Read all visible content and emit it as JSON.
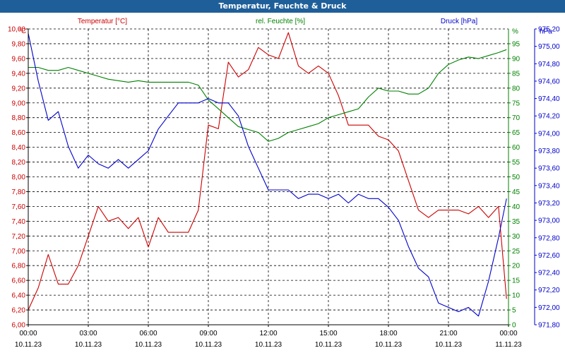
{
  "window": {
    "title": "Temperatur, Feuchte & Druck"
  },
  "colors": {
    "temperature": "#cc0000",
    "humidity": "#008000",
    "pressure": "#0000cc",
    "titlebar": "#1f5f99"
  },
  "chart_data": {
    "type": "line",
    "title": "Temperatur, Feuchte & Druck",
    "grid": true,
    "x_ticks": [
      {
        "time": "00:00",
        "date": "10.11.23"
      },
      {
        "time": "03:00",
        "date": "10.11.23"
      },
      {
        "time": "06:00",
        "date": "10.11.23"
      },
      {
        "time": "09:00",
        "date": "10.11.23"
      },
      {
        "time": "12:00",
        "date": "10.11.23"
      },
      {
        "time": "15:00",
        "date": "10.11.23"
      },
      {
        "time": "18:00",
        "date": "10.11.23"
      },
      {
        "time": "21:00",
        "date": "10.11.23"
      },
      {
        "time": "00:00",
        "date": "11.11.23"
      }
    ],
    "axes": {
      "temperature": {
        "unit": "°C",
        "ylim": [
          6.0,
          10.0
        ],
        "ticks": [
          "6,00",
          "6,20",
          "6,40",
          "6,60",
          "6,80",
          "7,00",
          "7,20",
          "7,40",
          "7,60",
          "7,80",
          "8,00",
          "8,20",
          "8,40",
          "8,60",
          "8,80",
          "9,00",
          "9,20",
          "9,40",
          "9,60",
          "9,80",
          "10,00"
        ]
      },
      "humidity": {
        "unit": "%",
        "ylim": [
          0,
          100
        ],
        "ticks": [
          "0",
          "5",
          "10",
          "15",
          "20",
          "25",
          "30",
          "35",
          "40",
          "45",
          "50",
          "55",
          "60",
          "65",
          "70",
          "75",
          "80",
          "85",
          "90",
          "95"
        ]
      },
      "pressure": {
        "unit": "hPa",
        "ylim": [
          971.8,
          975.2
        ],
        "ticks": [
          "971,80",
          "972,00",
          "972,20",
          "972,40",
          "972,60",
          "972,80",
          "973,00",
          "973,20",
          "973,40",
          "973,60",
          "973,80",
          "974,00",
          "974,20",
          "974,40",
          "974,60",
          "974,80",
          "975,00",
          "975,20"
        ]
      }
    },
    "series": [
      {
        "name": "Temperatur [°C]",
        "axis": "temperature",
        "x": [
          0,
          0.5,
          1,
          1.5,
          2,
          2.5,
          3,
          3.5,
          4,
          4.5,
          5,
          5.5,
          6,
          6.5,
          7,
          7.5,
          8,
          8.5,
          9,
          9.5,
          10,
          10.5,
          11,
          11.5,
          12,
          12.5,
          13,
          13.5,
          14,
          14.5,
          15,
          15.5,
          16,
          16.5,
          17,
          17.5,
          18,
          18.5,
          19,
          19.5,
          20,
          20.5,
          21,
          21.5,
          22,
          22.5,
          23,
          23.5,
          23.9
        ],
        "values": [
          6.2,
          6.5,
          6.95,
          6.55,
          6.55,
          6.8,
          7.2,
          7.6,
          7.4,
          7.45,
          7.3,
          7.45,
          7.05,
          7.45,
          7.25,
          7.25,
          7.25,
          7.55,
          8.7,
          8.65,
          9.55,
          9.35,
          9.45,
          9.75,
          9.65,
          9.6,
          9.95,
          9.5,
          9.4,
          9.5,
          9.4,
          9.1,
          8.7,
          8.7,
          8.7,
          8.55,
          8.5,
          8.35,
          7.95,
          7.55,
          7.45,
          7.55,
          7.55,
          7.55,
          7.5,
          7.6,
          7.45,
          7.6,
          6.35
        ]
      },
      {
        "name": "rel. Feuchte [%]",
        "axis": "humidity",
        "x": [
          0,
          0.5,
          1,
          1.5,
          2,
          2.5,
          3,
          3.5,
          4,
          4.5,
          5,
          5.5,
          6,
          6.5,
          7,
          7.5,
          8,
          8.5,
          9,
          9.5,
          10,
          10.5,
          11,
          11.5,
          12,
          12.5,
          13,
          13.5,
          14,
          14.5,
          15,
          15.5,
          16,
          16.5,
          17,
          17.5,
          18,
          18.5,
          19,
          19.5,
          20,
          20.5,
          21,
          21.5,
          22,
          22.5,
          23,
          23.5,
          23.9
        ],
        "values": [
          87,
          87,
          86,
          86,
          87,
          86,
          85,
          84,
          83,
          82.5,
          82,
          82.5,
          82,
          82,
          82,
          82,
          82,
          81,
          76,
          73,
          70,
          67,
          66,
          65,
          62,
          63,
          65,
          66,
          67,
          68,
          70,
          71,
          72,
          73,
          77,
          80,
          79,
          79,
          78,
          78,
          80,
          85,
          88,
          89.5,
          90.5,
          90,
          91,
          92,
          93
        ]
      },
      {
        "name": "Druck [hPa]",
        "axis": "pressure",
        "x": [
          0,
          0.5,
          1,
          1.5,
          2,
          2.5,
          3,
          3.5,
          4,
          4.5,
          5,
          5.5,
          6,
          6.5,
          7,
          7.5,
          8,
          8.5,
          9,
          9.5,
          10,
          10.5,
          11,
          11.5,
          12,
          12.5,
          13,
          13.5,
          14,
          14.5,
          15,
          15.5,
          16,
          16.5,
          17,
          17.5,
          18,
          18.5,
          19,
          19.5,
          20,
          20.5,
          21,
          21.5,
          22,
          22.5,
          23,
          23.5,
          23.9
        ],
        "values": [
          975.15,
          974.6,
          974.15,
          974.25,
          973.85,
          973.6,
          973.75,
          973.65,
          973.6,
          973.7,
          973.6,
          973.7,
          973.8,
          974.05,
          974.2,
          974.35,
          974.35,
          974.35,
          974.4,
          974.35,
          974.35,
          974.2,
          973.85,
          973.6,
          973.35,
          973.35,
          973.35,
          973.25,
          973.3,
          973.3,
          973.25,
          973.3,
          973.2,
          973.3,
          973.25,
          973.25,
          973.15,
          973.0,
          972.7,
          972.45,
          972.35,
          972.05,
          972.0,
          971.95,
          972.0,
          971.9,
          972.3,
          972.8,
          973.25
        ]
      }
    ]
  }
}
